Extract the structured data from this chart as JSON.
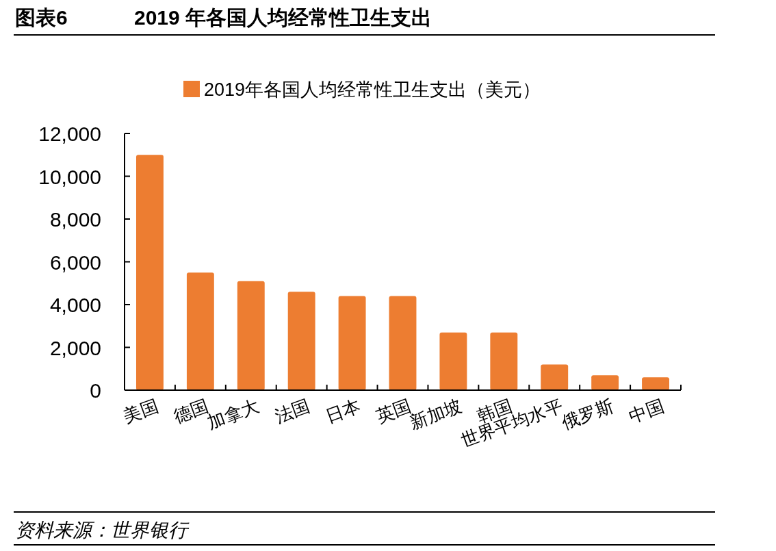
{
  "chart_data": {
    "type": "bar",
    "title": "图表6",
    "subtitle": "2019 年各国人均经常性卫生支出",
    "categories": [
      "美国",
      "德国",
      "加拿大",
      "法国",
      "日本",
      "英国",
      "新加坡",
      "韩国",
      "世界平均水平",
      "俄罗斯",
      "中国"
    ],
    "series": [
      {
        "name": "2019年各国人均经常性卫生支出（美元）",
        "color": "#ed7d31",
        "values": [
          11000,
          5500,
          5100,
          4600,
          4400,
          4400,
          2700,
          2700,
          1200,
          700,
          600
        ]
      }
    ],
    "ylim": [
      0,
      12000
    ],
    "yticks": [
      {
        "value": 0,
        "label": "0"
      },
      {
        "value": 2000,
        "label": "2,000"
      },
      {
        "value": 4000,
        "label": "4,000"
      },
      {
        "value": 6000,
        "label": "6,000"
      },
      {
        "value": 8000,
        "label": "8,000"
      },
      {
        "value": 10000,
        "label": "10,000"
      },
      {
        "value": 12000,
        "label": "12,000"
      }
    ],
    "grid": false,
    "legend": "top",
    "annotations": [
      "资料来源：世界银行"
    ]
  }
}
